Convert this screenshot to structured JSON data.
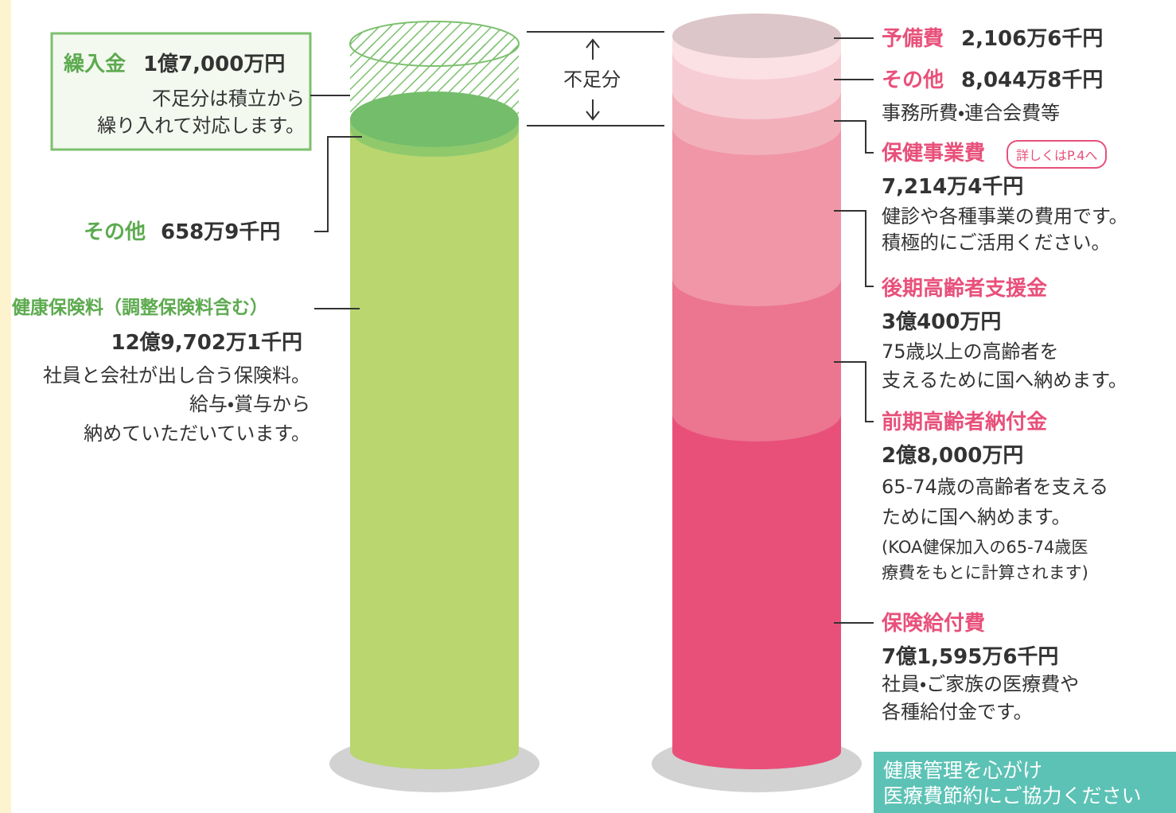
{
  "income": {
    "transfer": {
      "name": "繰入金",
      "amount": "1億7,000万円",
      "note": [
        "不足分は積立から",
        "繰り入れて対応します。"
      ]
    },
    "other": {
      "name": "その他",
      "amount": "658万9千円"
    },
    "premium": {
      "name": "健康保険料（調整保険料含む）",
      "amount": "12億9,702万1千円",
      "note": [
        "社員と会社が出し合う保険料。",
        "給与・賞与から",
        "納めていただいています。"
      ]
    }
  },
  "shortfall": "不足分",
  "expenses": [
    {
      "name": "予備費",
      "amount": "2,106万6千円"
    },
    {
      "name": "その他",
      "amount": "8,044万8千円",
      "note": [
        "事務所費・連合会費等"
      ]
    },
    {
      "name": "保健事業費",
      "badge": "詳しくはP.4へ",
      "amount": "7,214万4千円",
      "note": [
        "健診や各種事業の費用です。",
        "積極的にご活用ください。"
      ]
    },
    {
      "name": "後期高齢者支援金",
      "amount": "3億400万円",
      "note": [
        "75歳以上の高齢者を",
        "支えるために国へ納めます。"
      ]
    },
    {
      "name": "前期高齢者納付金",
      "amount": "2億8,000万円",
      "note": [
        "65-74歳の高齢者を支える",
        "ために国へ納めます。",
        "(KOA健保加入の65-74歳医",
        "療費をもとに計算されます)"
      ]
    },
    {
      "name": "保険給付費",
      "amount": "7億1,595万6千円",
      "note": [
        "社員・ご家族の医療費や",
        "各種給付金です。"
      ]
    }
  ],
  "footer": [
    "健康管理を心がけ",
    "医療費節約にご協力ください"
  ]
}
